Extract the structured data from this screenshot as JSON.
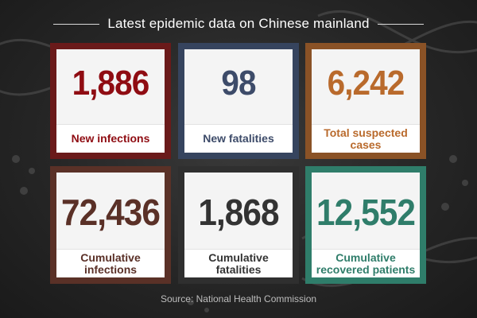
{
  "title": "Latest epidemic data on Chinese mainland",
  "cards": [
    {
      "value": "1,886",
      "label": "New infections",
      "color": "#8f0c12"
    },
    {
      "value": "98",
      "label": "New fatalities",
      "color": "#3d4b69"
    },
    {
      "value": "6,242",
      "label": "Total suspected cases",
      "color": "#b96a2c"
    },
    {
      "value": "72,436",
      "label": "Cumulative infections",
      "color": "#5a3027"
    },
    {
      "value": "1,868",
      "label": "Cumulative fatalities",
      "color": "#333333"
    },
    {
      "value": "12,552",
      "label": "Cumulative recovered patients",
      "color": "#2f7d6a"
    }
  ],
  "source": "Source: National Health Commission"
}
